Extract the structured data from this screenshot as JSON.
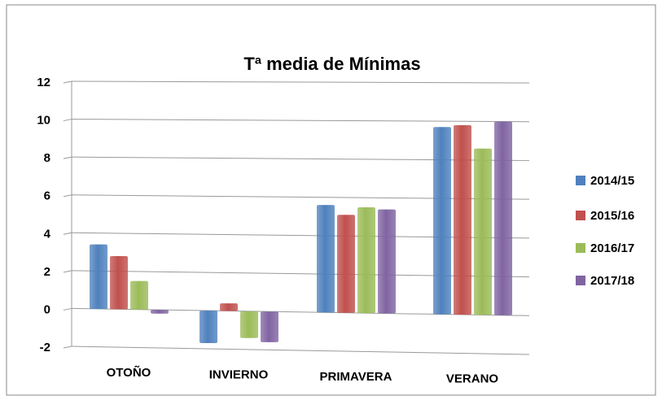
{
  "chart_data": {
    "type": "bar",
    "title": "Tª media de Mínimas",
    "categories": [
      "OTOÑO",
      "INVIERNO",
      "PRIMAVERA",
      "VERANO"
    ],
    "series": [
      {
        "name": "2014/15",
        "color": "#4f81bd",
        "values": [
          3.4,
          -1.7,
          5.6,
          9.7
        ]
      },
      {
        "name": "2015/16",
        "color": "#c0504d",
        "values": [
          2.8,
          0.4,
          5.1,
          9.8
        ]
      },
      {
        "name": "2016/17",
        "color": "#9bbb59",
        "values": [
          1.5,
          -1.4,
          5.5,
          8.6
        ]
      },
      {
        "name": "2017/18",
        "color": "#8064a2",
        "values": [
          -0.2,
          -1.6,
          5.4,
          10.0
        ]
      }
    ],
    "ylim": [
      -2,
      12
    ],
    "yticks": [
      -2,
      0,
      2,
      4,
      6,
      8,
      10,
      12
    ],
    "grid": true,
    "legend": "right"
  }
}
